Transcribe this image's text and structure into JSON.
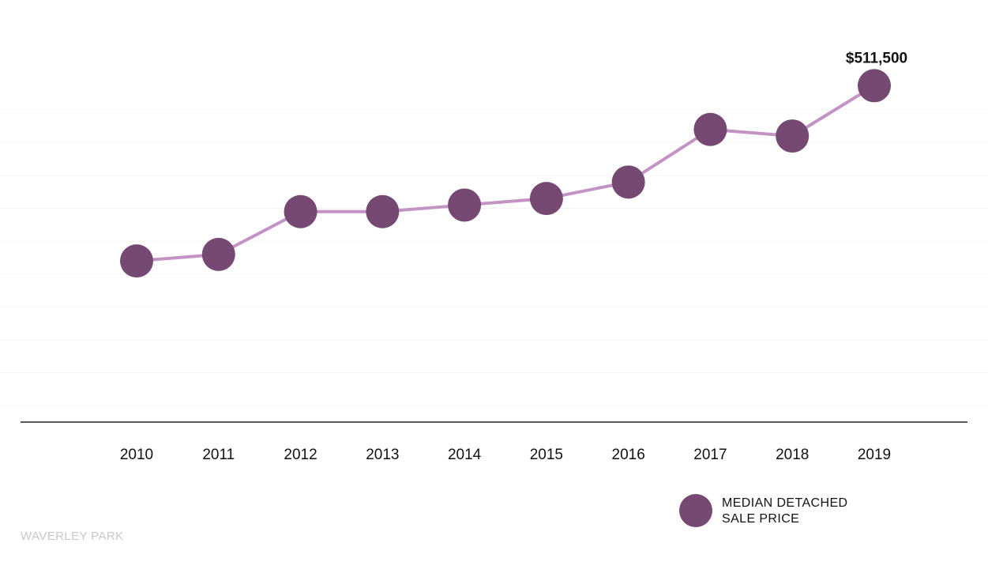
{
  "colors": {
    "point": "#764973",
    "line": "#c393c6",
    "grid": "#f3f3f3",
    "axis": "#222222"
  },
  "chart_data": {
    "type": "line",
    "categories": [
      "2010",
      "2011",
      "2012",
      "2013",
      "2014",
      "2015",
      "2016",
      "2017",
      "2018",
      "2019"
    ],
    "series": [
      {
        "name": "MEDIAN DETACHED SALE PRICE",
        "values": [
          245000,
          255000,
          320000,
          320000,
          330000,
          340000,
          365000,
          445000,
          435000,
          511500
        ]
      }
    ],
    "annotations": [
      {
        "category": "2019",
        "text": "$511,500"
      }
    ],
    "ylim": [
      0,
      1000000
    ],
    "grid": true,
    "legend_position": "bottom-right",
    "xlabel": "",
    "ylabel": ""
  },
  "legend": {
    "line1": "MEDIAN DETACHED",
    "line2": "SALE PRICE"
  },
  "footer": {
    "suburb": "WAVERLEY PARK"
  }
}
